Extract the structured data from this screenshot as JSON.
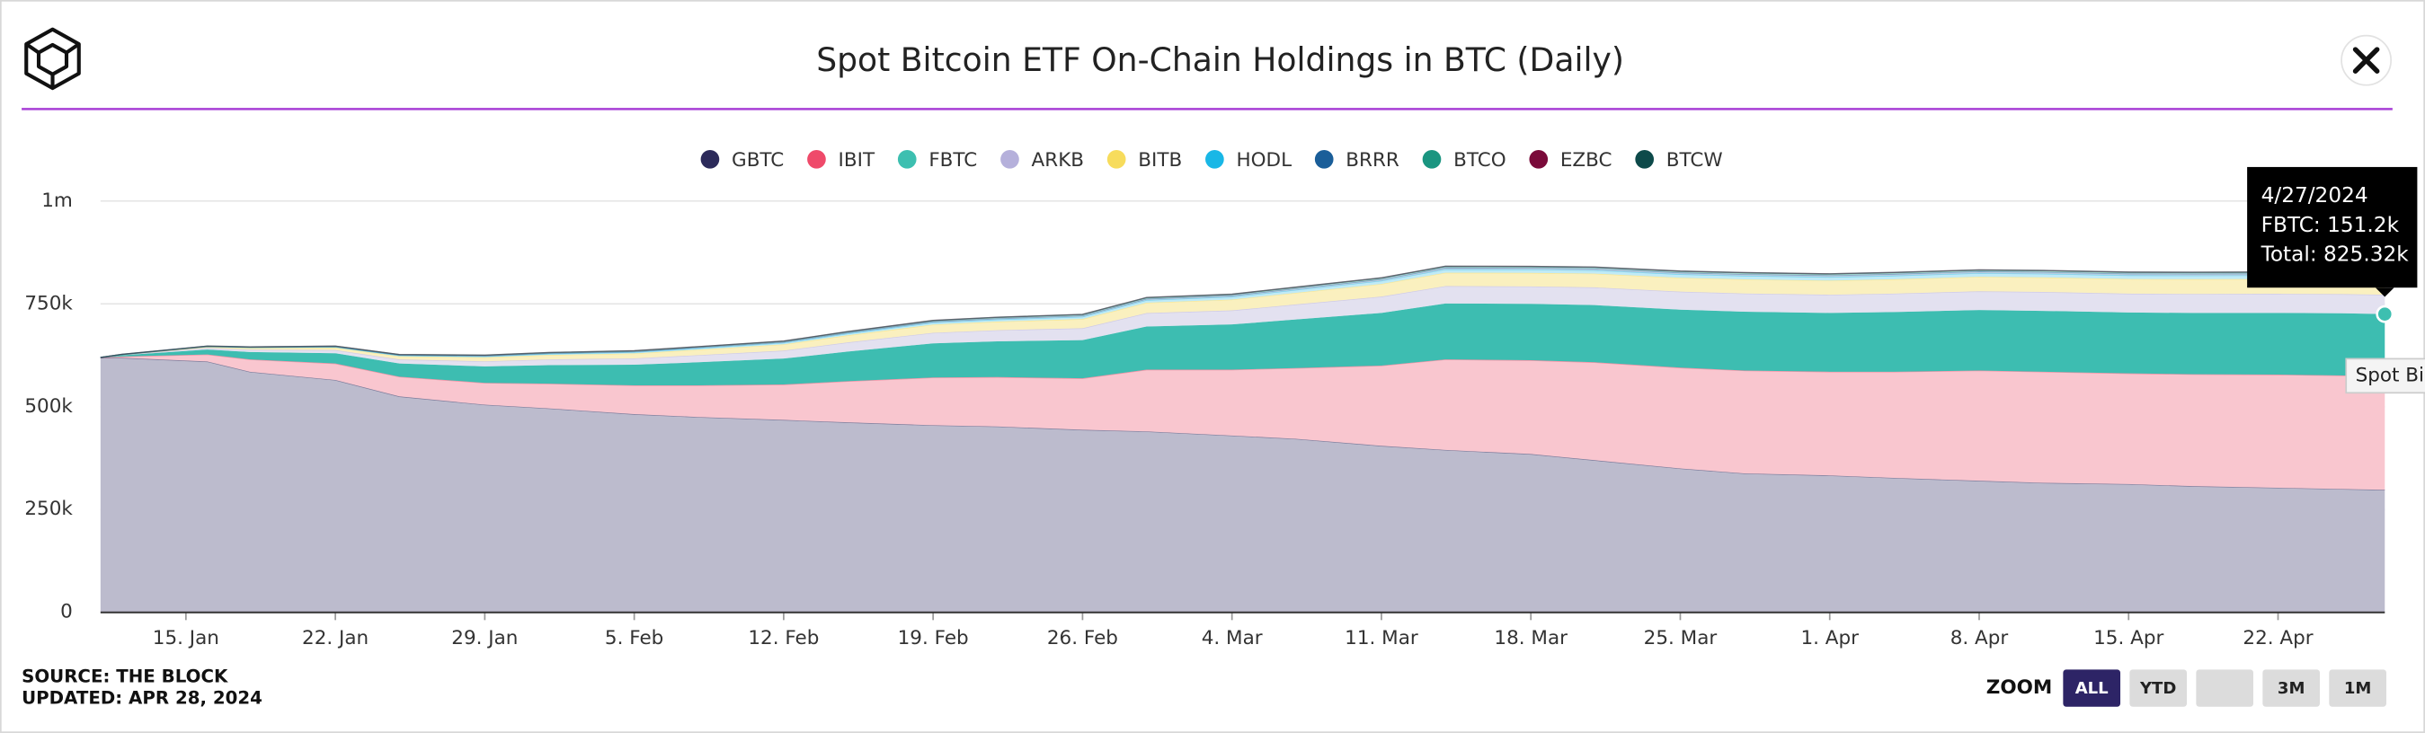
{
  "chart_data": {
    "type": "stacked-area",
    "title": "Spot Bitcoin ETF On-Chain Holdings in BTC (Daily)",
    "x": [
      "2024-01-11",
      "2024-01-12",
      "2024-01-16",
      "2024-01-18",
      "2024-01-22",
      "2024-01-25",
      "2024-01-29",
      "2024-02-01",
      "2024-02-05",
      "2024-02-08",
      "2024-02-12",
      "2024-02-15",
      "2024-02-19",
      "2024-02-22",
      "2024-02-26",
      "2024-02-29",
      "2024-03-04",
      "2024-03-07",
      "2024-03-11",
      "2024-03-14",
      "2024-03-18",
      "2024-03-21",
      "2024-03-25",
      "2024-03-28",
      "2024-04-01",
      "2024-04-04",
      "2024-04-08",
      "2024-04-11",
      "2024-04-15",
      "2024-04-18",
      "2024-04-22",
      "2024-04-25",
      "2024-04-27"
    ],
    "xlim": [
      "2024-01-11",
      "2024-04-27"
    ],
    "xticks": [
      {
        "value": "2024-01-15",
        "label": "15. Jan"
      },
      {
        "value": "2024-01-22",
        "label": "22. Jan"
      },
      {
        "value": "2024-01-29",
        "label": "29. Jan"
      },
      {
        "value": "2024-02-05",
        "label": "5. Feb"
      },
      {
        "value": "2024-02-12",
        "label": "12. Feb"
      },
      {
        "value": "2024-02-19",
        "label": "19. Feb"
      },
      {
        "value": "2024-02-26",
        "label": "26. Feb"
      },
      {
        "value": "2024-03-04",
        "label": "4. Mar"
      },
      {
        "value": "2024-03-11",
        "label": "11. Mar"
      },
      {
        "value": "2024-03-18",
        "label": "18. Mar"
      },
      {
        "value": "2024-03-25",
        "label": "25. Mar"
      },
      {
        "value": "2024-04-01",
        "label": "1. Apr"
      },
      {
        "value": "2024-04-08",
        "label": "8. Apr"
      },
      {
        "value": "2024-04-15",
        "label": "15. Apr"
      },
      {
        "value": "2024-04-22",
        "label": "22. Apr"
      }
    ],
    "ylim": [
      0,
      1000000
    ],
    "yticks": [
      0,
      {
        "value": 250000,
        "label": "250k"
      },
      {
        "value": 500000,
        "label": "500k"
      },
      {
        "value": 750000,
        "label": "750k"
      },
      {
        "value": 1000000,
        "label": "1m"
      }
    ],
    "grid": true,
    "legend": "top",
    "series": [
      {
        "name": "GBTC",
        "color": "#2c2a5a",
        "fill": "#bcbbcd",
        "values": [
          619000,
          619000,
          610000,
          585000,
          565000,
          525000,
          505000,
          496000,
          482000,
          475000,
          468000,
          462000,
          455000,
          452000,
          444000,
          440000,
          430000,
          422000,
          405000,
          395000,
          385000,
          370000,
          350000,
          338000,
          333000,
          327000,
          320000,
          315000,
          312000,
          307000,
          303000,
          300000,
          298000
        ]
      },
      {
        "name": "IBIT",
        "color": "#ef4a6a",
        "fill": "#f9c6cf",
        "values": [
          200,
          3000,
          17000,
          30000,
          40000,
          48000,
          53000,
          60000,
          70000,
          77000,
          86000,
          100000,
          116000,
          120000,
          125000,
          150000,
          160000,
          172000,
          195000,
          220000,
          228000,
          238000,
          245000,
          250000,
          252000,
          258000,
          268000,
          270000,
          269000,
          272000,
          275000,
          276000,
          276000
        ]
      },
      {
        "name": "FBTC",
        "color": "#3dbfb0",
        "fill": "#3dbdb1",
        "values": [
          200,
          3000,
          12000,
          18000,
          25000,
          32000,
          40000,
          45000,
          50000,
          56000,
          63000,
          72000,
          83000,
          87000,
          93000,
          105000,
          110000,
          118000,
          128000,
          136000,
          137000,
          139000,
          141000,
          143000,
          143000,
          145000,
          147000,
          148000,
          148000,
          149000,
          150000,
          151000,
          151200
        ]
      },
      {
        "name": "ARKB",
        "color": "#b5b0db",
        "fill": "#e3e1f0",
        "values": [
          100,
          900,
          3700,
          5600,
          7800,
          9900,
          12400,
          14000,
          15500,
          17400,
          19500,
          22300,
          25700,
          27000,
          28800,
          32600,
          34100,
          36600,
          39700,
          42200,
          42500,
          43100,
          43700,
          44300,
          44300,
          45000,
          45600,
          45900,
          45900,
          46200,
          46500,
          46800,
          47000
        ]
      },
      {
        "name": "BITB",
        "color": "#f7dc5c",
        "fill": "#faf0bf",
        "values": [
          100,
          700,
          2900,
          4300,
          6000,
          7700,
          9600,
          10800,
          12000,
          13400,
          15100,
          17300,
          19900,
          20900,
          22300,
          25200,
          26400,
          28300,
          30700,
          32600,
          32900,
          33400,
          33800,
          34300,
          34300,
          34800,
          35300,
          35500,
          35500,
          35800,
          36000,
          36200,
          36000
        ]
      },
      {
        "name": "HODL",
        "color": "#19b7e6",
        "fill": "#c0eaf6",
        "values": [
          0,
          200,
          700,
          1100,
          1500,
          1900,
          2400,
          2700,
          3000,
          3400,
          3800,
          4300,
          5000,
          5200,
          5600,
          6300,
          6600,
          7100,
          7700,
          8200,
          8200,
          8300,
          8500,
          8600,
          8600,
          8700,
          8800,
          8900,
          8900,
          8900,
          9000,
          9000,
          9000
        ]
      },
      {
        "name": "BRRR",
        "color": "#1a5e99",
        "fill": "#b8cde0",
        "values": [
          0,
          100,
          400,
          500,
          800,
          1000,
          1200,
          1400,
          1500,
          1700,
          1900,
          2200,
          2500,
          2600,
          2800,
          3200,
          3300,
          3500,
          3800,
          4100,
          4100,
          4200,
          4200,
          4300,
          4300,
          4400,
          4400,
          4400,
          4400,
          4500,
          4500,
          4500,
          4500
        ]
      },
      {
        "name": "BTCO",
        "color": "#1a9580",
        "fill": "#b9e0d8",
        "values": [
          100,
          300,
          500,
          700,
          900,
          1100,
          1300,
          1400,
          1500,
          1600,
          1700,
          1900,
          2000,
          2100,
          2200,
          2400,
          2400,
          2500,
          2600,
          2600,
          2600,
          2600,
          2700,
          2700,
          2700,
          2700,
          2700,
          2700,
          2700,
          2700,
          2700,
          2700,
          2700
        ]
      },
      {
        "name": "EZBC",
        "color": "#7a0a3a",
        "fill": "#d9b5c5",
        "values": [
          0,
          100,
          200,
          200,
          300,
          300,
          400,
          400,
          500,
          500,
          500,
          600,
          600,
          600,
          700,
          700,
          700,
          700,
          800,
          800,
          800,
          800,
          800,
          800,
          800,
          800,
          800,
          800,
          800,
          800,
          800,
          800,
          800
        ]
      },
      {
        "name": "BTCW",
        "color": "#0d4a4a",
        "fill": "#b6c9c9",
        "values": [
          0,
          0,
          10,
          20,
          30,
          40,
          50,
          50,
          60,
          60,
          70,
          70,
          80,
          80,
          90,
          90,
          100,
          100,
          100,
          100,
          100,
          110,
          110,
          110,
          110,
          110,
          110,
          110,
          120,
          120,
          120,
          120,
          120
        ]
      }
    ],
    "tooltip": {
      "date": "4/27/2024",
      "series_line": "FBTC: 151.2k",
      "total_line": "Total: 825.32k",
      "second_tooltip": "Spot Bi"
    },
    "source": "SOURCE: THE BLOCK",
    "updated": "UPDATED: APR 28, 2024",
    "zoom": {
      "label": "ZOOM",
      "buttons": [
        "ALL",
        "YTD",
        "3M",
        "1M"
      ],
      "selected": "ALL"
    }
  }
}
